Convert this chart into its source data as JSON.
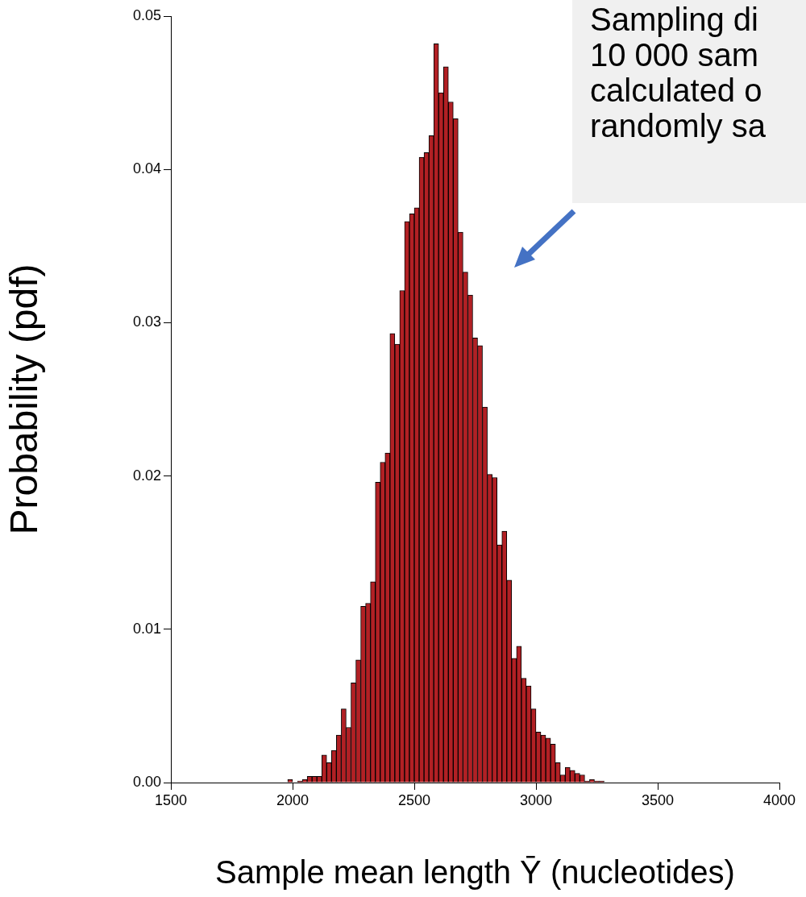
{
  "chart_data": {
    "type": "histogram",
    "xlabel": "Sample mean length Ȳ (nucleotides)",
    "ylabel": "Probability (pdf)",
    "annotations": [
      "Sampling di\n10 000 sam\ncalculated o\nrandomly sa"
    ],
    "bins": [
      1980,
      2000,
      2020,
      2040,
      2060,
      2080,
      2100,
      2120,
      2140,
      2160,
      2180,
      2200,
      2220,
      2240,
      2260,
      2280,
      2300,
      2320,
      2340,
      2360,
      2380,
      2400,
      2420,
      2440,
      2460,
      2480,
      2500,
      2520,
      2540,
      2560,
      2580,
      2600,
      2620,
      2640,
      2660,
      2680,
      2700,
      2720,
      2740,
      2760,
      2780,
      2800,
      2820,
      2840,
      2860,
      2880,
      2900,
      2920,
      2940,
      2960,
      2980,
      3000,
      3020,
      3040,
      3060,
      3080,
      3100,
      3120,
      3140,
      3160,
      3180,
      3200,
      3220,
      3240,
      3260,
      3280
    ],
    "values": [
      0.0002,
      0,
      0.0001,
      0.0002,
      0.0004,
      0.0004,
      0.0004,
      0.0018,
      0.0013,
      0.0021,
      0.0031,
      0.0048,
      0.0036,
      0.0065,
      0.008,
      0.0115,
      0.0117,
      0.0131,
      0.0196,
      0.0209,
      0.0215,
      0.0293,
      0.0286,
      0.0321,
      0.0366,
      0.0371,
      0.0375,
      0.0408,
      0.0411,
      0.0422,
      0.0482,
      0.045,
      0.0467,
      0.0444,
      0.0433,
      0.0359,
      0.0333,
      0.0318,
      0.029,
      0.0285,
      0.0245,
      0.0201,
      0.0199,
      0.0155,
      0.0164,
      0.0132,
      0.0081,
      0.0089,
      0.0068,
      0.0063,
      0.0048,
      0.0033,
      0.0031,
      0.0029,
      0.0025,
      0.0013,
      0.0005,
      0.001,
      0.0008,
      0.0006,
      0.0005,
      0.0001,
      0.0002,
      0.0001,
      0.0001
    ],
    "color": "#b22024",
    "xlim": [
      1500,
      4000
    ],
    "xticks": [
      1500,
      2000,
      2500,
      3000,
      3500,
      4000
    ],
    "ylim": [
      0,
      0.05
    ],
    "yticks": [
      {
        "value": 0,
        "label": "0.00"
      },
      {
        "value": 0.01,
        "label": "0.01"
      },
      {
        "value": 0.02,
        "label": "0.02"
      },
      {
        "value": 0.03,
        "label": "0.03"
      },
      {
        "value": 0.04,
        "label": "0.04"
      },
      {
        "value": 0.05,
        "label": "0.05"
      }
    ]
  }
}
